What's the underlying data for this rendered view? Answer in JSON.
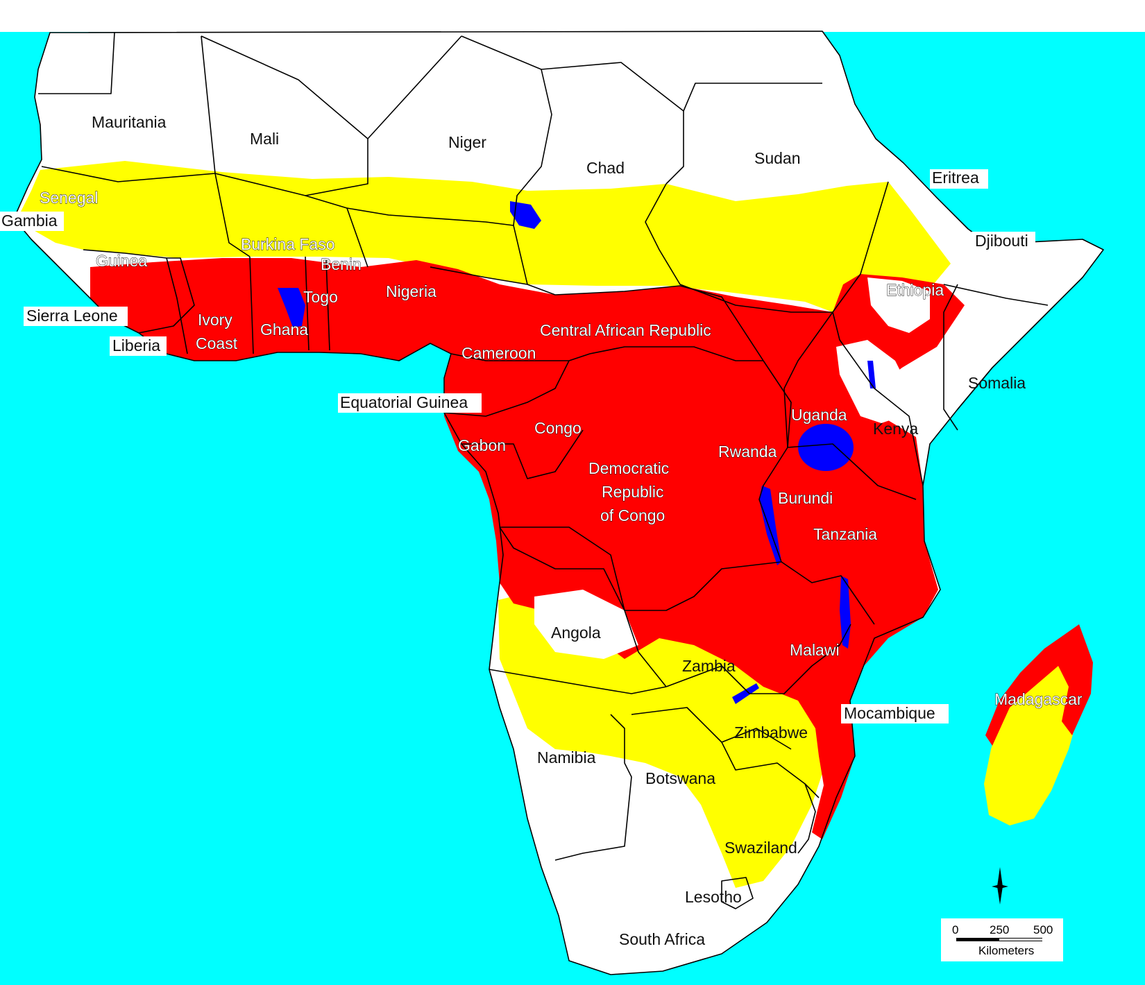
{
  "colors": {
    "ocean": "#00ffff",
    "no_risk": "#ffffff",
    "low_risk": "#ffff00",
    "high_risk": "#ff0000",
    "water": "#0000ff",
    "border": "#000000"
  },
  "labels": {
    "mauritania": "Mauritania",
    "mali": "Mali",
    "niger": "Niger",
    "chad": "Chad",
    "sudan": "Sudan",
    "eritrea": "Eritrea",
    "senegal": "Senegal",
    "gambia": "Gambia",
    "burkina_faso": "Burkina Faso",
    "benin": "Benin",
    "djibouti": "Djibouti",
    "guinea": "Guinea",
    "togo": "Togo",
    "nigeria": "Nigeria",
    "ethiopia": "Ethiopia",
    "sierra_leone": "Sierra Leone",
    "ivory_coast_1": "Ivory",
    "ivory_coast_2": "Coast",
    "ghana": "Ghana",
    "central_african_republic": "Central African Republic",
    "liberia": "Liberia",
    "cameroon": "Cameroon",
    "somalia": "Somalia",
    "equatorial_guinea": "Equatorial Guinea",
    "uganda": "Uganda",
    "kenya": "Kenya",
    "congo": "Congo",
    "gabon": "Gabon",
    "rwanda": "Rwanda",
    "drc_1": "Democratic",
    "drc_2": "Republic",
    "drc_3": "of Congo",
    "burundi": "Burundi",
    "tanzania": "Tanzania",
    "angola": "Angola",
    "malawi": "Malawi",
    "zambia": "Zambia",
    "madagascar": "Madagascar",
    "mocambique": "Mocambique",
    "zimbabwe": "Zimbabwe",
    "namibia": "Namibia",
    "botswana": "Botswana",
    "swaziland": "Swaziland",
    "lesotho": "Lesotho",
    "south_africa": "South Africa"
  },
  "scale_bar": {
    "tick_0": "0",
    "tick_250": "250",
    "tick_500": "500",
    "unit": "Kilometers"
  }
}
